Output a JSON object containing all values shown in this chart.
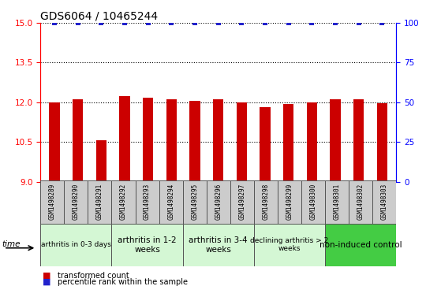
{
  "title": "GDS6064 / 10465244",
  "samples": [
    "GSM1498289",
    "GSM1498290",
    "GSM1498291",
    "GSM1498292",
    "GSM1498293",
    "GSM1498294",
    "GSM1498295",
    "GSM1498296",
    "GSM1498297",
    "GSM1498298",
    "GSM1498299",
    "GSM1498300",
    "GSM1498301",
    "GSM1498302",
    "GSM1498303"
  ],
  "bar_values": [
    12.0,
    12.1,
    10.55,
    12.22,
    12.18,
    12.1,
    12.05,
    12.1,
    12.0,
    11.8,
    11.92,
    12.0,
    12.1,
    12.1,
    11.95
  ],
  "percentile_values": [
    100,
    100,
    100,
    100,
    100,
    100,
    100,
    100,
    100,
    100,
    100,
    100,
    100,
    100,
    100
  ],
  "bar_color": "#cc0000",
  "percentile_color": "#2222cc",
  "ylim_left": [
    9,
    15
  ],
  "ylim_right": [
    0,
    100
  ],
  "yticks_left": [
    9,
    10.5,
    12,
    13.5,
    15
  ],
  "yticks_right": [
    0,
    25,
    50,
    75,
    100
  ],
  "groups": [
    {
      "label": "arthritis in 0-3 days",
      "start": 0,
      "end": 3,
      "color": "#d4f7d4",
      "fontsize": 6.5
    },
    {
      "label": "arthritis in 1-2\nweeks",
      "start": 3,
      "end": 6,
      "color": "#d4f7d4",
      "fontsize": 7.5
    },
    {
      "label": "arthritis in 3-4\nweeks",
      "start": 6,
      "end": 9,
      "color": "#d4f7d4",
      "fontsize": 7.5
    },
    {
      "label": "declining arthritis > 2\nweeks",
      "start": 9,
      "end": 12,
      "color": "#d4f7d4",
      "fontsize": 6.5
    },
    {
      "label": "non-induced control",
      "start": 12,
      "end": 15,
      "color": "#44cc44",
      "fontsize": 7.5
    }
  ],
  "legend_items": [
    {
      "label": "transformed count",
      "color": "#cc0000"
    },
    {
      "label": "percentile rank within the sample",
      "color": "#2222cc"
    }
  ],
  "time_label": "time",
  "title_fontsize": 10,
  "tick_fontsize": 7.5,
  "sample_fontsize": 5.5,
  "bar_width": 0.45
}
